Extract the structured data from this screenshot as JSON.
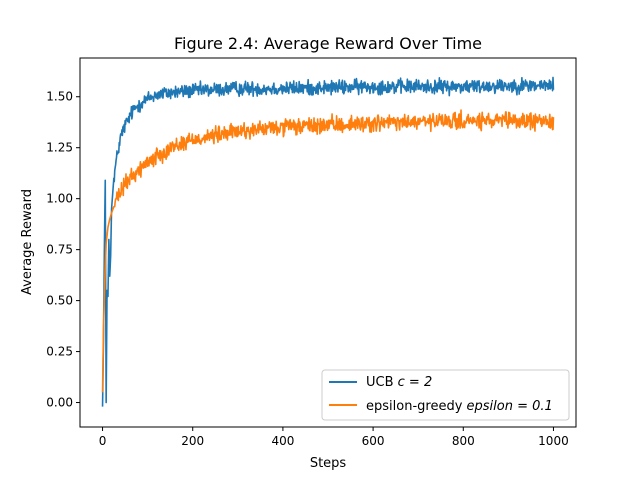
{
  "chart_data": {
    "type": "line",
    "title": "Figure 2.4: Average Reward Over Time",
    "xlabel": "Steps",
    "ylabel": "Average Reward",
    "xlim": [
      -50,
      1050
    ],
    "ylim": [
      -0.12,
      1.69
    ],
    "xticks": [
      0,
      200,
      400,
      600,
      800,
      1000
    ],
    "xtick_labels": [
      "0",
      "200",
      "400",
      "600",
      "800",
      "1000"
    ],
    "yticks": [
      0.0,
      0.25,
      0.5,
      0.75,
      1.0,
      1.25,
      1.5
    ],
    "ytick_labels": [
      "0.00",
      "0.25",
      "0.50",
      "0.75",
      "1.00",
      "1.25",
      "1.50"
    ],
    "grid": false,
    "legend_position": "lower-right",
    "series": [
      {
        "name_prefix": "UCB",
        "name_math": "c = 2",
        "color": "#1f77b4",
        "shape": {
          "x": [
            0,
            2,
            4,
            6,
            8,
            10,
            12,
            14,
            16,
            18,
            20,
            25,
            30,
            40,
            50,
            60,
            70,
            80,
            100,
            120,
            150,
            200,
            300,
            400,
            500,
            600,
            700,
            800,
            900,
            1000
          ],
          "y": [
            -0.02,
            0.3,
            0.75,
            1.09,
            0.0,
            0.55,
            0.52,
            0.8,
            0.62,
            0.72,
            0.95,
            1.1,
            1.18,
            1.3,
            1.36,
            1.4,
            1.44,
            1.46,
            1.49,
            1.51,
            1.52,
            1.53,
            1.54,
            1.54,
            1.545,
            1.55,
            1.55,
            1.55,
            1.555,
            1.555
          ]
        },
        "noise": 0.022
      },
      {
        "name_prefix": "epsilon-greedy",
        "name_math": "epsilon = 0.1",
        "color": "#ff7f0e",
        "shape": {
          "x": [
            0,
            2,
            5,
            8,
            12,
            16,
            20,
            30,
            40,
            50,
            70,
            100,
            150,
            200,
            300,
            400,
            500,
            600,
            700,
            800,
            900,
            1000
          ],
          "y": [
            0.05,
            0.35,
            0.6,
            0.78,
            0.86,
            0.9,
            0.93,
            0.99,
            1.03,
            1.07,
            1.12,
            1.18,
            1.25,
            1.29,
            1.33,
            1.35,
            1.36,
            1.37,
            1.375,
            1.38,
            1.38,
            1.38
          ]
        },
        "noise": 0.025
      }
    ]
  }
}
